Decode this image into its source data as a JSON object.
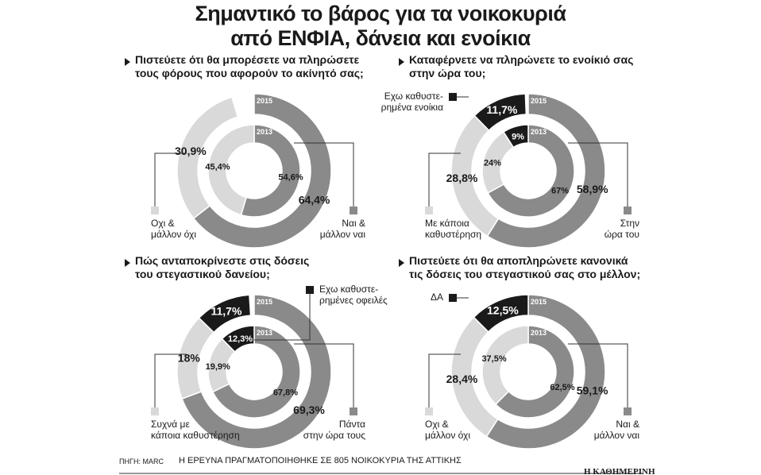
{
  "header": {
    "title": [
      "Σημαντικό το βάρος για τα νοικοκυριά",
      "από ΕΝΦΙΑ, δάνεια και ενοίκια"
    ]
  },
  "chart_data": [
    {
      "type": "donut",
      "title": [
        "Πιστεύετε ότι θα μπορέσετε να πληρώσετε",
        "τους φόρους που αφορούν το ακίνητό σας;"
      ],
      "categories": [
        "Οχι &\nμάλλον όχι",
        "Ναι &\nμάλλον ναι"
      ],
      "colors": [
        "#d9d9d9",
        "#8a8a8a"
      ],
      "series": [
        {
          "name": "2015",
          "values": [
            30.9,
            64.4
          ],
          "value_labels": [
            "30,9%",
            "64,4%"
          ]
        },
        {
          "name": "2013",
          "values": [
            45.4,
            54.6
          ],
          "value_labels": [
            "45,4%",
            "54,6%"
          ]
        }
      ]
    },
    {
      "type": "donut",
      "title": [
        "Καταφέρνετε να πληρώνετε το ενοίκιό σας",
        "στην ώρα του;"
      ],
      "categories": [
        "Εχω καθυστε-\nρημένα ενοίκια",
        "Με κάποια\nκαθυστέρηση",
        "Στην\nώρα του"
      ],
      "colors": [
        "#1a1a1a",
        "#d9d9d9",
        "#8a8a8a"
      ],
      "series": [
        {
          "name": "2015",
          "values": [
            11.7,
            28.8,
            58.9
          ],
          "value_labels": [
            "11,7%",
            "28,8%",
            "58,9%"
          ]
        },
        {
          "name": "2013",
          "values": [
            9,
            24,
            67
          ],
          "value_labels": [
            "9%",
            "24%",
            "67%"
          ]
        }
      ]
    },
    {
      "type": "donut",
      "title": [
        "Πώς ανταποκρίνεστε στις δόσεις",
        "του στεγαστικού δανείου;"
      ],
      "categories": [
        "Εχω καθυστε-\nρημένες οφειλές",
        "Συχνά με\nκάποια καθυστέρηση",
        "Πάντα\nστην ώρα τους"
      ],
      "colors": [
        "#1a1a1a",
        "#d9d9d9",
        "#8a8a8a"
      ],
      "series": [
        {
          "name": "2015",
          "values": [
            11.7,
            18,
            69.3
          ],
          "value_labels": [
            "11,7%",
            "18%",
            "69,3%"
          ]
        },
        {
          "name": "2013",
          "values": [
            12.3,
            19.9,
            67.8
          ],
          "value_labels": [
            "12,3%",
            "19,9%",
            "67,8%"
          ]
        }
      ]
    },
    {
      "type": "donut",
      "title": [
        "Πιστεύετε ότι θα αποπληρώνετε κανονικά",
        "τις δόσεις του στεγαστικού σας στο μέλλον;"
      ],
      "categories": [
        "ΔΑ",
        "Οχι &\nμάλλον όχι",
        "Ναι &\nμάλλον ναι"
      ],
      "colors": [
        "#1a1a1a",
        "#d9d9d9",
        "#8a8a8a"
      ],
      "series": [
        {
          "name": "2015",
          "values": [
            12.5,
            28.4,
            59.1
          ],
          "value_labels": [
            "12,5%",
            "28,4%",
            "59,1%"
          ]
        },
        {
          "name": "2013",
          "values": [
            null,
            37.5,
            62.5
          ],
          "value_labels": [
            null,
            "37,5%",
            "62,5%"
          ]
        }
      ]
    }
  ],
  "footer": {
    "source": "ΠΗΓΗ: MARC",
    "note": "Η ΕΡΕΥΝΑ ΠΡΑΓΜΑΤΟΠΟΙΗΘΗΚΕ ΣΕ 805 ΝΟΙΚΟΚΥΡΙΑ ΤΗΣ ΑΤΤΙΚΗΣ",
    "brand": "Η ΚΑΘΗΜΕΡΙΝΗ"
  }
}
